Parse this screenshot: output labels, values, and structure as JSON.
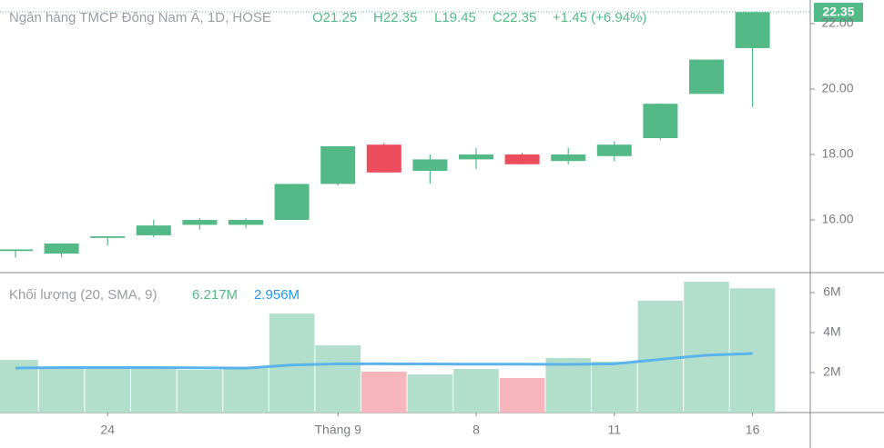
{
  "chart_data": [
    {
      "type": "candlestick",
      "title": "Ngân hàng TMCP Đông Nam Á, 1D, HOSE",
      "ohlc_text": [
        "O21.25",
        "H22.35",
        "L19.45",
        "C22.35",
        "+1.45 (+6.94%)"
      ],
      "open": [
        15.05,
        14.97,
        15.45,
        15.53,
        15.85,
        15.85,
        16.0,
        17.1,
        18.3,
        17.5,
        17.85,
        18.0,
        17.8,
        17.95,
        18.5,
        19.85,
        21.25
      ],
      "high": [
        15.1,
        15.28,
        15.5,
        16.0,
        16.05,
        16.05,
        17.1,
        18.25,
        18.35,
        18.0,
        18.2,
        18.05,
        18.2,
        18.4,
        19.55,
        20.9,
        22.35
      ],
      "low": [
        14.85,
        14.86,
        15.22,
        15.47,
        15.7,
        15.75,
        16.0,
        17.05,
        17.45,
        17.1,
        17.55,
        17.7,
        17.7,
        17.8,
        18.45,
        19.85,
        19.45
      ],
      "close": [
        15.1,
        15.28,
        15.5,
        15.83,
        16.0,
        16.0,
        17.1,
        18.25,
        17.45,
        17.85,
        18.0,
        17.7,
        18.0,
        18.3,
        19.55,
        20.9,
        22.35
      ],
      "last_price_label": "22.35",
      "ylim": [
        14.39,
        22.72
      ],
      "yticks": [
        {
          "value": 16,
          "label": "16.00"
        },
        {
          "value": 18,
          "label": "18.00"
        },
        {
          "value": 20,
          "label": "20.00"
        },
        {
          "value": 22,
          "label": "22.00"
        }
      ],
      "up_color": "#53b987",
      "down_color": "#eb4d5c"
    },
    {
      "type": "bar",
      "title": "Khối lượng (20, SMA, 9)",
      "categories": [
        null,
        null,
        "24",
        null,
        null,
        null,
        null,
        "Tháng 9",
        null,
        null,
        "8",
        null,
        null,
        "11",
        null,
        null,
        "16"
      ],
      "values": [
        2.64,
        2.27,
        2.27,
        2.27,
        2.14,
        2.27,
        4.95,
        3.36,
        2.05,
        1.91,
        2.18,
        1.73,
        2.73,
        2.55,
        5.59,
        6.55,
        6.217
      ],
      "sma": [
        2.23,
        2.25,
        2.25,
        2.25,
        2.24,
        2.22,
        2.38,
        2.44,
        2.44,
        2.43,
        2.42,
        2.42,
        2.41,
        2.44,
        2.66,
        2.87,
        2.956
      ],
      "value_label": "6.217M",
      "sma_label": "2.956M",
      "sma_color": "#5ab4eb",
      "up_color": "#b2dfcb",
      "down_color": "#f7b6bc",
      "ylim": [
        0,
        7
      ],
      "yticks": [
        {
          "value": 2,
          "label": "2M"
        },
        {
          "value": 4,
          "label": "4M"
        },
        {
          "value": 6,
          "label": "6M"
        }
      ]
    }
  ]
}
